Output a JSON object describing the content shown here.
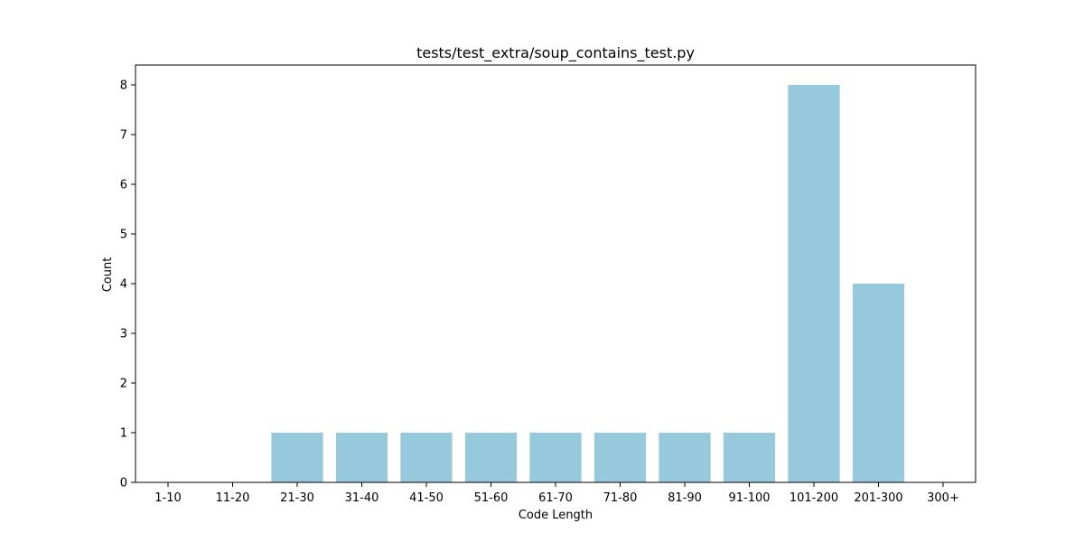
{
  "chart_data": {
    "type": "bar",
    "title": "tests/test_extra/soup_contains_test.py",
    "xlabel": "Code Length",
    "ylabel": "Count",
    "categories": [
      "1-10",
      "11-20",
      "21-30",
      "31-40",
      "41-50",
      "51-60",
      "61-70",
      "71-80",
      "81-90",
      "91-100",
      "101-200",
      "201-300",
      "300+"
    ],
    "values": [
      0,
      0,
      1,
      1,
      1,
      1,
      1,
      1,
      1,
      1,
      8,
      4,
      0
    ],
    "ylim": [
      0,
      8.4
    ],
    "yticks": [
      0,
      1,
      2,
      3,
      4,
      5,
      6,
      7,
      8
    ],
    "bar_color": "#96c9dc",
    "grid": false,
    "legend": "none"
  }
}
